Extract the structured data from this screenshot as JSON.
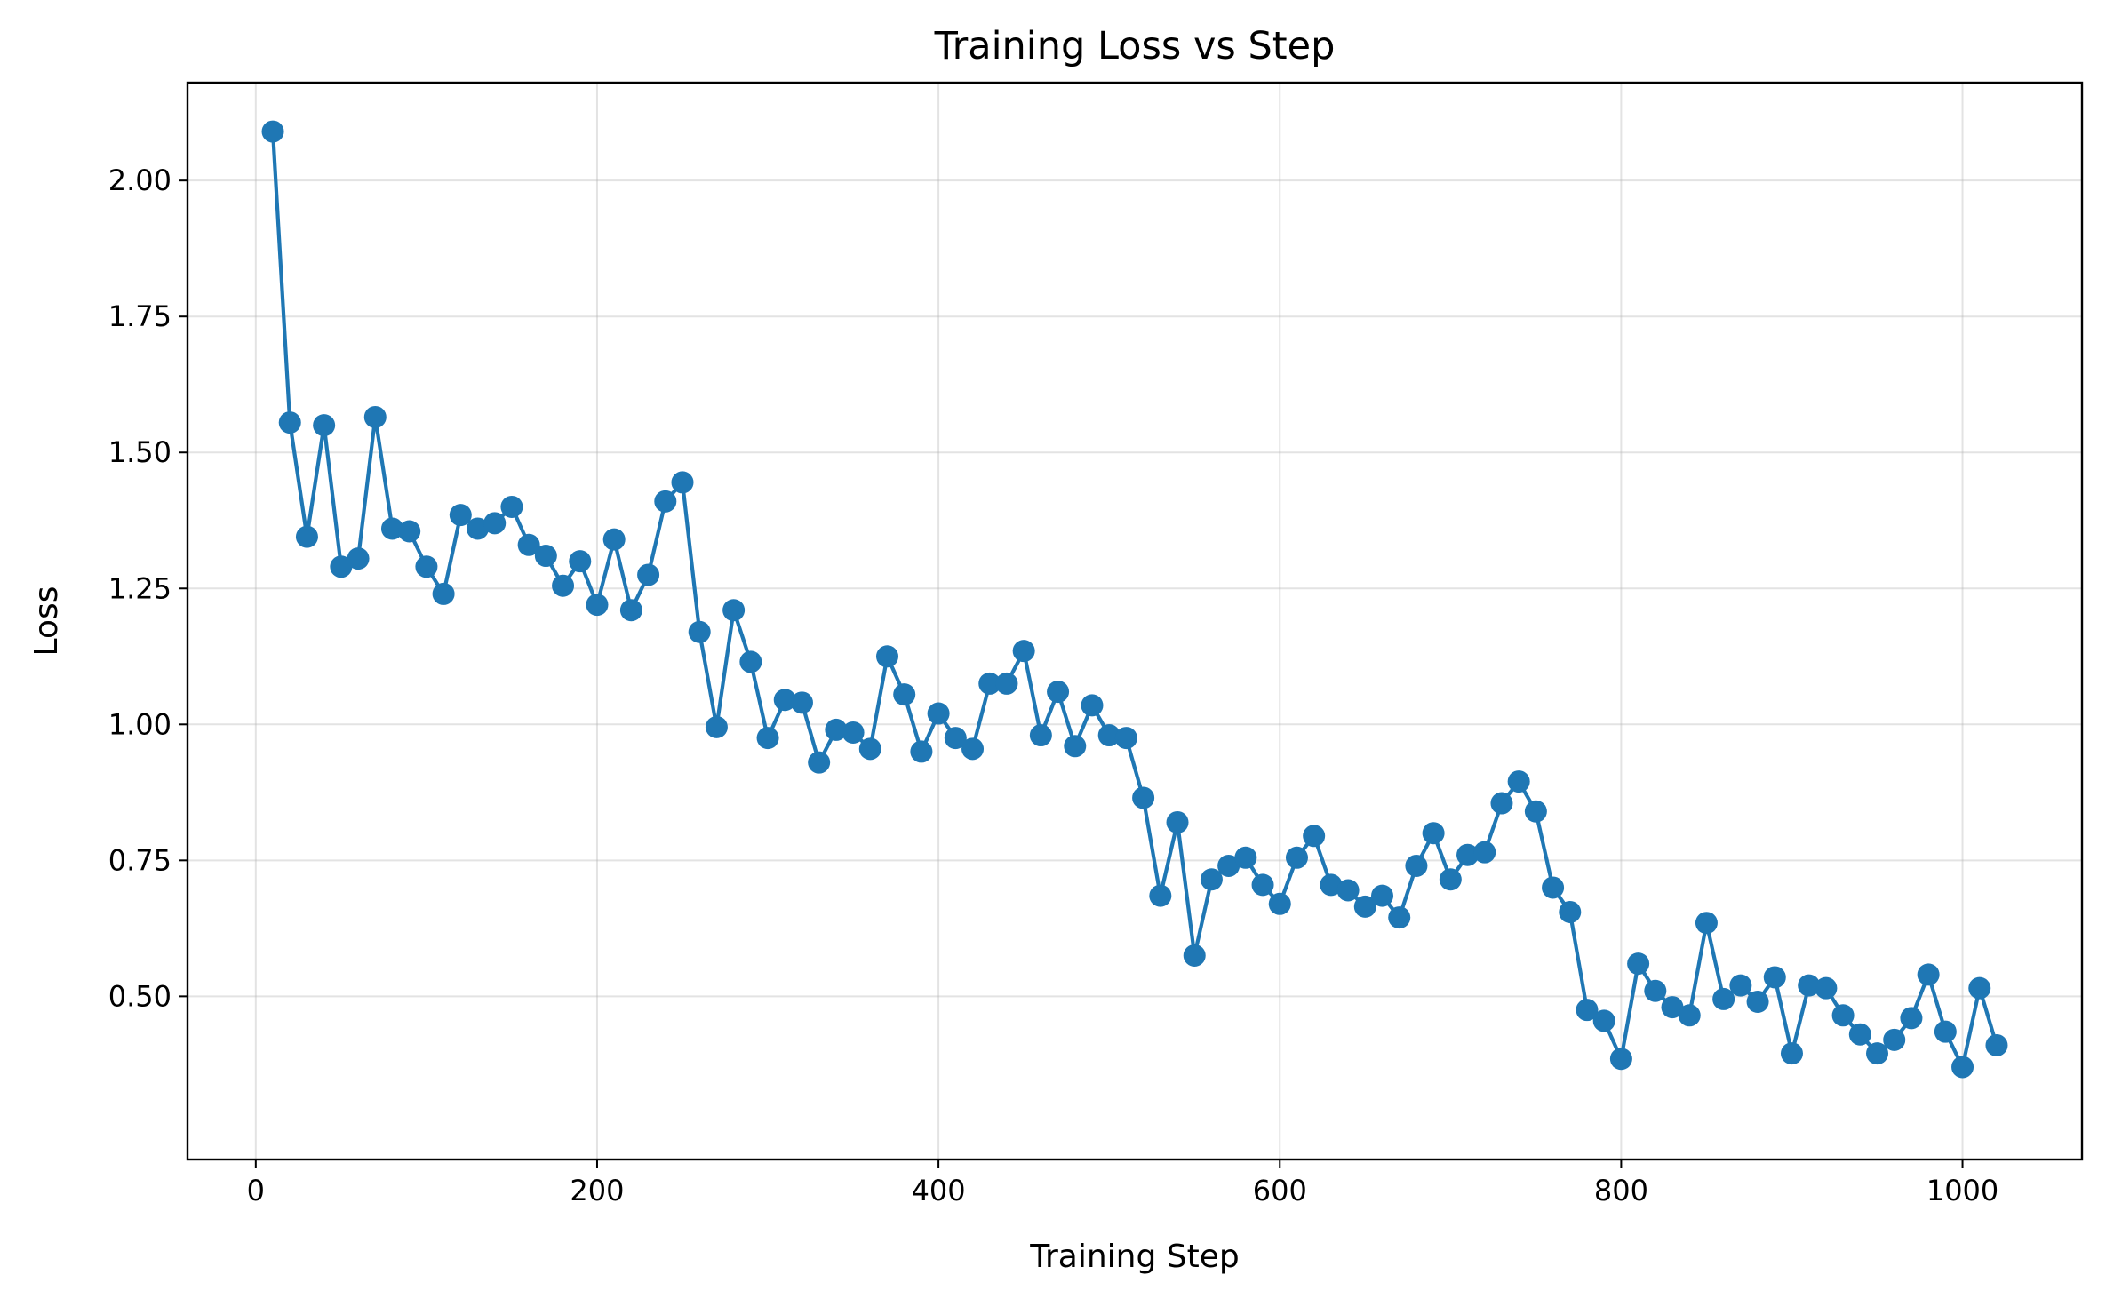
{
  "chart_data": {
    "type": "line",
    "title": "Training Loss vs Step",
    "xlabel": "Training Step",
    "ylabel": "Loss",
    "xlim": [
      -40,
      1070
    ],
    "ylim": [
      0.2,
      2.18
    ],
    "xticks": [
      0,
      200,
      400,
      600,
      800,
      1000
    ],
    "xtick_labels": [
      "0",
      "200",
      "400",
      "600",
      "800",
      "1000"
    ],
    "yticks": [
      0.5,
      0.75,
      1.0,
      1.25,
      1.5,
      1.75,
      2.0
    ],
    "ytick_labels": [
      "0.50",
      "0.75",
      "1.00",
      "1.25",
      "1.50",
      "1.75",
      "2.00"
    ],
    "grid": true,
    "markers": true,
    "color": "#1f77b4",
    "x": [
      10,
      20,
      30,
      40,
      50,
      60,
      70,
      80,
      90,
      100,
      110,
      120,
      130,
      140,
      150,
      160,
      170,
      180,
      190,
      200,
      210,
      220,
      230,
      240,
      250,
      260,
      270,
      280,
      290,
      300,
      310,
      320,
      330,
      340,
      350,
      360,
      370,
      380,
      390,
      400,
      410,
      420,
      430,
      440,
      450,
      460,
      470,
      480,
      490,
      500,
      510,
      520,
      530,
      540,
      550,
      560,
      570,
      580,
      590,
      600,
      610,
      620,
      630,
      640,
      650,
      660,
      670,
      680,
      690,
      700,
      710,
      720,
      730,
      740,
      750,
      760,
      770,
      780,
      790,
      800,
      810,
      820,
      830,
      840,
      850,
      860,
      870,
      880,
      890,
      900,
      910,
      920,
      930,
      940,
      950,
      960,
      970,
      980,
      990,
      1000,
      1010,
      1020
    ],
    "y": [
      2.09,
      1.555,
      1.345,
      1.55,
      1.29,
      1.305,
      1.565,
      1.36,
      1.355,
      1.29,
      1.24,
      1.385,
      1.36,
      1.37,
      1.4,
      1.33,
      1.31,
      1.255,
      1.3,
      1.22,
      1.34,
      1.21,
      1.275,
      1.41,
      1.445,
      1.17,
      0.995,
      1.21,
      1.115,
      0.975,
      1.045,
      1.04,
      0.93,
      0.99,
      0.985,
      0.955,
      1.125,
      1.055,
      0.95,
      1.02,
      0.975,
      0.955,
      1.075,
      1.075,
      1.135,
      0.98,
      1.06,
      0.96,
      1.035,
      0.98,
      0.975,
      0.865,
      0.685,
      0.82,
      0.575,
      0.715,
      0.74,
      0.755,
      0.705,
      0.67,
      0.755,
      0.795,
      0.705,
      0.695,
      0.665,
      0.685,
      0.645,
      0.74,
      0.8,
      0.715,
      0.76,
      0.765,
      0.855,
      0.895,
      0.84,
      0.7,
      0.655,
      0.475,
      0.455,
      0.385,
      0.56,
      0.51,
      0.48,
      0.465,
      0.635,
      0.495,
      0.52,
      0.49,
      0.535,
      0.395,
      0.52,
      0.515,
      0.465,
      0.43,
      0.395,
      0.42,
      0.46,
      0.54,
      0.435,
      0.37,
      0.515,
      0.41
    ]
  }
}
